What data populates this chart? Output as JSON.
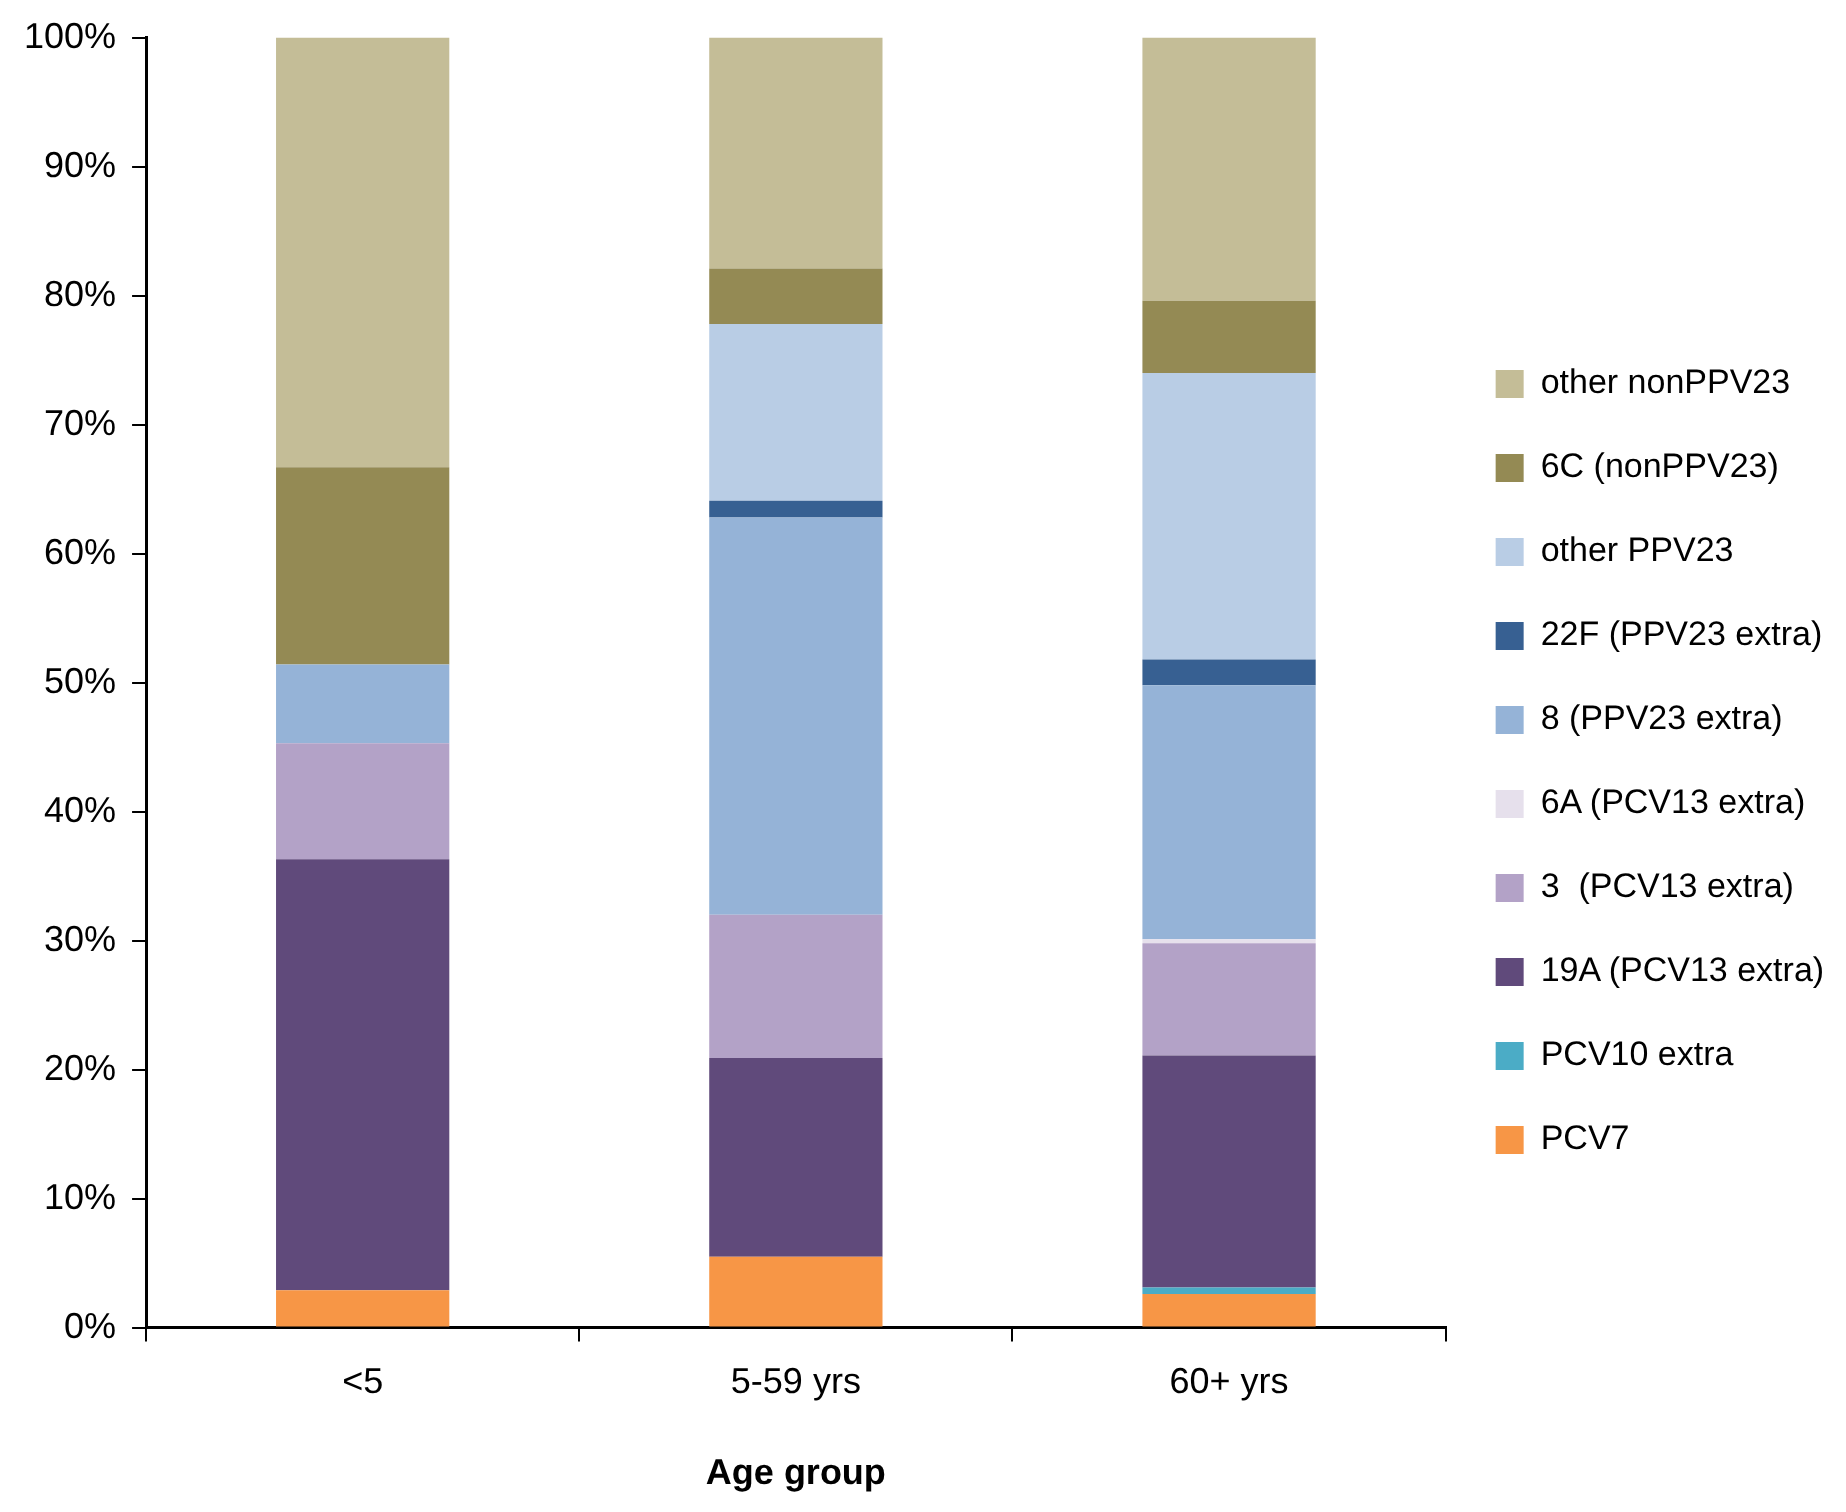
{
  "chart_data": {
    "type": "bar",
    "stacked": true,
    "xlabel": "Age group",
    "categories": [
      "<5",
      "5-59 yrs",
      "60+ yrs"
    ],
    "series": [
      {
        "name": "PCV7",
        "color": "#f79646",
        "values": [
          2.9,
          5.5,
          2.6
        ]
      },
      {
        "name": "PCV10 extra",
        "color": "#4bacc6",
        "values": [
          0,
          0,
          0.5
        ]
      },
      {
        "name": "19A (PCV13 extra)",
        "color": "#604a7b",
        "values": [
          33.4,
          15.4,
          18.0
        ]
      },
      {
        "name": "3  (PCV13 extra)",
        "color": "#b3a2c7",
        "values": [
          9.0,
          11.1,
          8.7
        ]
      },
      {
        "name": "6A (PCV13 extra)",
        "color": "#e6e0ec",
        "values": [
          0,
          0,
          0.3
        ]
      },
      {
        "name": "8 (PPV23 extra)",
        "color": "#95b3d7",
        "values": [
          6.1,
          30.8,
          19.7
        ]
      },
      {
        "name": "22F (PPV23 extra)",
        "color": "#376092",
        "values": [
          0,
          1.3,
          2.0
        ]
      },
      {
        "name": "other PPV23",
        "color": "#b9cde5",
        "values": [
          0,
          13.7,
          22.2
        ]
      },
      {
        "name": "6C (nonPPV23)",
        "color": "#948a54",
        "values": [
          15.3,
          4.3,
          5.6
        ]
      },
      {
        "name": "other nonPPV23",
        "color": "#c4bd97",
        "values": [
          33.3,
          17.9,
          20.4
        ]
      }
    ],
    "ylim": [
      0,
      100
    ],
    "yticks": [
      {
        "value": 0,
        "label": "0%"
      },
      {
        "value": 10,
        "label": "10%"
      },
      {
        "value": 20,
        "label": "20%"
      },
      {
        "value": 30,
        "label": "30%"
      },
      {
        "value": 40,
        "label": "40%"
      },
      {
        "value": 50,
        "label": "50%"
      },
      {
        "value": 60,
        "label": "60%"
      },
      {
        "value": 70,
        "label": "70%"
      },
      {
        "value": 80,
        "label": "80%"
      },
      {
        "value": 90,
        "label": "90%"
      },
      {
        "value": 100,
        "label": "100%"
      }
    ],
    "grid": false,
    "legend": "right"
  }
}
